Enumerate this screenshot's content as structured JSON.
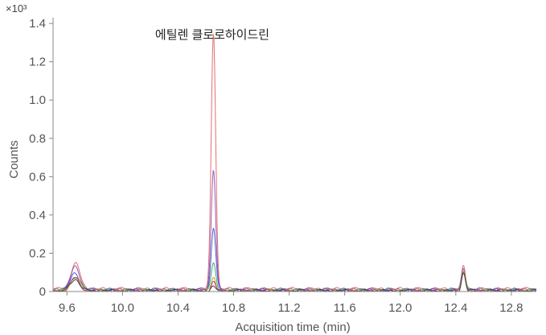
{
  "chart_data": {
    "type": "line",
    "title": "",
    "annotation": "에틸렌 클로로하이드린",
    "scale_label": "×10³",
    "xlabel": "Acquisition time (min)",
    "ylabel": "Counts",
    "xlim": [
      9.5,
      12.98
    ],
    "ylim": [
      0,
      1.43
    ],
    "x_ticks": [
      "9.6",
      "10.0",
      "10.4",
      "10.8",
      "11.2",
      "11.6",
      "12.0",
      "12.4",
      "12.8"
    ],
    "x_tick_values": [
      9.6,
      10.0,
      10.4,
      10.8,
      11.2,
      11.6,
      12.0,
      12.4,
      12.8
    ],
    "y_ticks": [
      "0",
      "0.2",
      "0.4",
      "0.6",
      "0.8",
      "1.0",
      "1.2",
      "1.4"
    ],
    "y_tick_values": [
      0,
      0.2,
      0.4,
      0.6,
      0.8,
      1.0,
      1.2,
      1.4
    ],
    "grid": false,
    "legend": "none",
    "series": [
      {
        "color": "#e07070",
        "baseline": 0.012,
        "peaks": [
          [
            9.66,
            0.135,
            0.033
          ],
          [
            10.655,
            1.34,
            0.016
          ],
          [
            12.455,
            0.115,
            0.014
          ]
        ]
      },
      {
        "color": "#9b59b6",
        "baseline": 0.01,
        "peaks": [
          [
            9.66,
            0.115,
            0.033
          ],
          [
            10.655,
            0.635,
            0.016
          ],
          [
            12.455,
            0.11,
            0.014
          ]
        ]
      },
      {
        "color": "#4b5bd6",
        "baseline": 0.008,
        "peaks": [
          [
            9.66,
            0.09,
            0.033
          ],
          [
            10.655,
            0.325,
            0.016
          ],
          [
            12.455,
            0.105,
            0.014
          ]
        ]
      },
      {
        "color": "#3aa86b",
        "baseline": 0.006,
        "peaks": [
          [
            9.66,
            0.075,
            0.033
          ],
          [
            10.655,
            0.14,
            0.016
          ],
          [
            12.455,
            0.1,
            0.014
          ]
        ]
      },
      {
        "color": "#c8a030",
        "baseline": 0.005,
        "peaks": [
          [
            9.66,
            0.068,
            0.033
          ],
          [
            10.655,
            0.07,
            0.016
          ],
          [
            12.455,
            0.098,
            0.014
          ]
        ]
      },
      {
        "color": "#b04080",
        "baseline": 0.004,
        "peaks": [
          [
            9.66,
            0.065,
            0.033
          ],
          [
            10.655,
            0.05,
            0.016
          ],
          [
            12.455,
            0.097,
            0.014
          ]
        ]
      },
      {
        "color": "#404040",
        "baseline": 0.003,
        "peaks": [
          [
            9.66,
            0.062,
            0.033
          ],
          [
            10.655,
            0.02,
            0.016
          ],
          [
            12.455,
            0.095,
            0.014
          ]
        ]
      }
    ]
  }
}
